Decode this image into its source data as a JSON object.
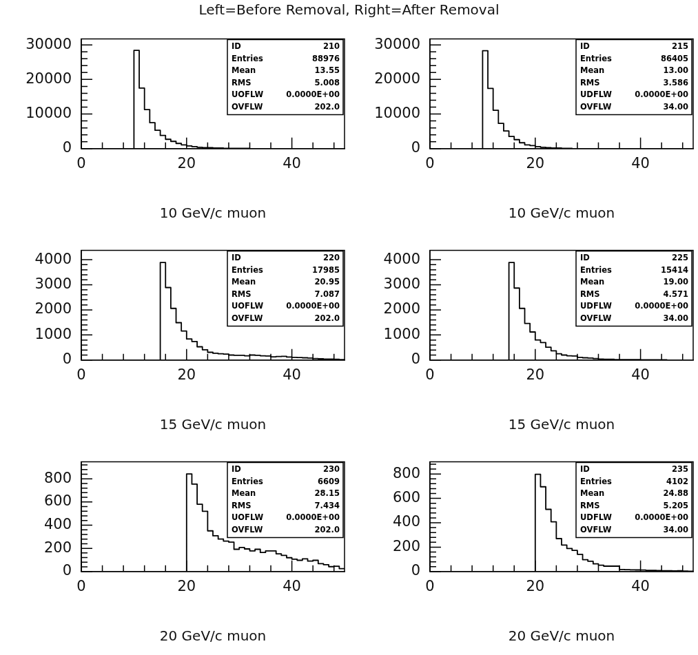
{
  "chart_data": [
    {
      "type": "histogram",
      "title": "Left=Before Removal, Right=After Removal",
      "xlabel": "10 GeV/c muon",
      "color": "#000000",
      "bins": [
        0,
        1,
        2,
        3,
        4,
        5,
        6,
        7,
        8,
        9,
        10,
        11,
        12,
        13,
        14,
        15,
        16,
        17,
        18,
        19,
        20,
        21,
        22,
        23,
        24,
        25,
        26,
        27,
        28,
        29,
        30,
        31,
        32,
        33,
        34,
        35,
        36,
        37,
        38,
        39,
        40,
        41,
        42,
        43,
        44,
        45,
        46,
        47,
        48,
        49,
        50
      ],
      "values": [
        0,
        0,
        0,
        0,
        0,
        0,
        0,
        0,
        0,
        0,
        28400,
        17500,
        11300,
        7500,
        5300,
        3800,
        2700,
        2100,
        1500,
        1100,
        800,
        600,
        400,
        300,
        300,
        200,
        200,
        100,
        100,
        100,
        100,
        100,
        0,
        0,
        0,
        0,
        0,
        0,
        0,
        0,
        0,
        0,
        0,
        0,
        0,
        0,
        0,
        0,
        0,
        0
      ],
      "xlim": [
        0,
        50
      ],
      "xticks": [
        0,
        {
          "value": 4,
          "label": null
        },
        {
          "value": 8,
          "label": null
        },
        {
          "value": 12,
          "label": null
        },
        {
          "value": 16,
          "label": null
        },
        20,
        {
          "value": 24,
          "label": null
        },
        {
          "value": 28,
          "label": null
        },
        {
          "value": 32,
          "label": null
        },
        {
          "value": 36,
          "label": null
        },
        40,
        {
          "value": 44,
          "label": null
        },
        {
          "value": 48,
          "label": null
        }
      ],
      "ylim": [
        0,
        31700
      ],
      "yticks": [
        0,
        {
          "value": 2000,
          "label": null
        },
        {
          "value": 4000,
          "label": null
        },
        {
          "value": 6000,
          "label": null
        },
        {
          "value": 8000,
          "label": null
        },
        10000,
        {
          "value": 12000,
          "label": null
        },
        {
          "value": 14000,
          "label": null
        },
        {
          "value": 16000,
          "label": null
        },
        {
          "value": 18000,
          "label": null
        },
        20000,
        {
          "value": 22000,
          "label": null
        },
        {
          "value": 24000,
          "label": null
        },
        {
          "value": 26000,
          "label": null
        },
        {
          "value": 28000,
          "label": null
        },
        30000
      ],
      "annotations": [
        "ID",
        "210",
        "Entries",
        "88976",
        "Mean",
        "13.55",
        "RMS",
        "5.008",
        "UOFLW",
        "0.0000E+00",
        "OVFLW",
        "202.0"
      ]
    },
    {
      "type": "histogram",
      "xlabel": "10 GeV/c muon",
      "color": "#000000",
      "bins": [
        0,
        1,
        2,
        3,
        4,
        5,
        6,
        7,
        8,
        9,
        10,
        11,
        12,
        13,
        14,
        15,
        16,
        17,
        18,
        19,
        20,
        21,
        22,
        23,
        24,
        25,
        26,
        27,
        28,
        29,
        30,
        31,
        32,
        33,
        34,
        35,
        36,
        37,
        38,
        39,
        40,
        41,
        42,
        43,
        44,
        45,
        46,
        47,
        48,
        49,
        50
      ],
      "values": [
        0,
        0,
        0,
        0,
        0,
        0,
        0,
        0,
        0,
        0,
        28300,
        17400,
        11100,
        7300,
        5100,
        3500,
        2600,
        1700,
        1100,
        900,
        600,
        400,
        300,
        200,
        200,
        100,
        100,
        0,
        0,
        0,
        0,
        0,
        0,
        0,
        0,
        0,
        0,
        0,
        0,
        0,
        0,
        0,
        0,
        0,
        0,
        0,
        0,
        0,
        0,
        0
      ],
      "xlim": [
        0,
        50
      ],
      "xticks": [
        0,
        {
          "value": 4,
          "label": null
        },
        {
          "value": 8,
          "label": null
        },
        {
          "value": 12,
          "label": null
        },
        {
          "value": 16,
          "label": null
        },
        20,
        {
          "value": 24,
          "label": null
        },
        {
          "value": 28,
          "label": null
        },
        {
          "value": 32,
          "label": null
        },
        {
          "value": 36,
          "label": null
        },
        40,
        {
          "value": 44,
          "label": null
        },
        {
          "value": 48,
          "label": null
        }
      ],
      "ylim": [
        0,
        31700
      ],
      "yticks": [
        0,
        {
          "value": 2000,
          "label": null
        },
        {
          "value": 4000,
          "label": null
        },
        {
          "value": 6000,
          "label": null
        },
        {
          "value": 8000,
          "label": null
        },
        10000,
        {
          "value": 12000,
          "label": null
        },
        {
          "value": 14000,
          "label": null
        },
        {
          "value": 16000,
          "label": null
        },
        {
          "value": 18000,
          "label": null
        },
        20000,
        {
          "value": 22000,
          "label": null
        },
        {
          "value": 24000,
          "label": null
        },
        {
          "value": 26000,
          "label": null
        },
        {
          "value": 28000,
          "label": null
        },
        30000
      ],
      "annotations": [
        "ID",
        "215",
        "Entries",
        "86405",
        "Mean",
        "13.00",
        "RMS",
        "3.586",
        "UDFLW",
        "0.0000E+00",
        "OVFLW",
        "34.00"
      ]
    },
    {
      "type": "histogram",
      "xlabel": "15 GeV/c muon",
      "color": "#000000",
      "bins": [
        0,
        1,
        2,
        3,
        4,
        5,
        6,
        7,
        8,
        9,
        10,
        11,
        12,
        13,
        14,
        15,
        16,
        17,
        18,
        19,
        20,
        21,
        22,
        23,
        24,
        25,
        26,
        27,
        28,
        29,
        30,
        31,
        32,
        33,
        34,
        35,
        36,
        37,
        38,
        39,
        40,
        41,
        42,
        43,
        44,
        45,
        46,
        47,
        48,
        49,
        50
      ],
      "values": [
        0,
        0,
        0,
        0,
        0,
        0,
        0,
        0,
        0,
        0,
        0,
        0,
        0,
        0,
        0,
        3890,
        2890,
        2060,
        1490,
        1160,
        840,
        740,
        530,
        410,
        310,
        270,
        250,
        240,
        200,
        190,
        190,
        170,
        200,
        190,
        170,
        160,
        130,
        140,
        150,
        120,
        110,
        100,
        90,
        80,
        60,
        50,
        40,
        40,
        30,
        20
      ],
      "xlim": [
        0,
        50
      ],
      "xticks": [
        0,
        {
          "value": 4,
          "label": null
        },
        {
          "value": 8,
          "label": null
        },
        {
          "value": 12,
          "label": null
        },
        {
          "value": 16,
          "label": null
        },
        20,
        {
          "value": 24,
          "label": null
        },
        {
          "value": 28,
          "label": null
        },
        {
          "value": 32,
          "label": null
        },
        {
          "value": 36,
          "label": null
        },
        40,
        {
          "value": 44,
          "label": null
        },
        {
          "value": 48,
          "label": null
        }
      ],
      "ylim": [
        0,
        4370
      ],
      "yticks": [
        0,
        {
          "value": 200,
          "label": null
        },
        {
          "value": 400,
          "label": null
        },
        {
          "value": 600,
          "label": null
        },
        {
          "value": 800,
          "label": null
        },
        1000,
        {
          "value": 1200,
          "label": null
        },
        {
          "value": 1400,
          "label": null
        },
        {
          "value": 1600,
          "label": null
        },
        {
          "value": 1800,
          "label": null
        },
        2000,
        {
          "value": 2200,
          "label": null
        },
        {
          "value": 2400,
          "label": null
        },
        {
          "value": 2600,
          "label": null
        },
        {
          "value": 2800,
          "label": null
        },
        3000,
        {
          "value": 3200,
          "label": null
        },
        {
          "value": 3400,
          "label": null
        },
        {
          "value": 3600,
          "label": null
        },
        {
          "value": 3800,
          "label": null
        },
        4000
      ],
      "annotations": [
        "ID",
        "220",
        "Entries",
        "17985",
        "Mean",
        "20.95",
        "RMS",
        "7.087",
        "UOFLW",
        "0.0000E+00",
        "OVFLW",
        "202.0"
      ]
    },
    {
      "type": "histogram",
      "xlabel": "15 GeV/c muon",
      "color": "#000000",
      "bins": [
        0,
        1,
        2,
        3,
        4,
        5,
        6,
        7,
        8,
        9,
        10,
        11,
        12,
        13,
        14,
        15,
        16,
        17,
        18,
        19,
        20,
        21,
        22,
        23,
        24,
        25,
        26,
        27,
        28,
        29,
        30,
        31,
        32,
        33,
        34,
        35,
        36,
        37,
        38,
        39,
        40,
        41,
        42,
        43,
        44,
        45,
        46,
        47,
        48,
        49,
        50
      ],
      "values": [
        0,
        0,
        0,
        0,
        0,
        0,
        0,
        0,
        0,
        0,
        0,
        0,
        0,
        0,
        0,
        3890,
        2870,
        2060,
        1460,
        1120,
        800,
        700,
        510,
        370,
        250,
        200,
        170,
        160,
        110,
        90,
        80,
        60,
        40,
        30,
        30,
        20,
        20,
        20,
        20,
        20,
        10,
        10,
        10,
        10,
        10,
        0,
        0,
        0,
        0,
        0
      ],
      "xlim": [
        0,
        50
      ],
      "xticks": [
        0,
        {
          "value": 4,
          "label": null
        },
        {
          "value": 8,
          "label": null
        },
        {
          "value": 12,
          "label": null
        },
        {
          "value": 16,
          "label": null
        },
        20,
        {
          "value": 24,
          "label": null
        },
        {
          "value": 28,
          "label": null
        },
        {
          "value": 32,
          "label": null
        },
        {
          "value": 36,
          "label": null
        },
        40,
        {
          "value": 44,
          "label": null
        },
        {
          "value": 48,
          "label": null
        }
      ],
      "ylim": [
        0,
        4370
      ],
      "yticks": [
        0,
        {
          "value": 200,
          "label": null
        },
        {
          "value": 400,
          "label": null
        },
        {
          "value": 600,
          "label": null
        },
        {
          "value": 800,
          "label": null
        },
        1000,
        {
          "value": 1200,
          "label": null
        },
        {
          "value": 1400,
          "label": null
        },
        {
          "value": 1600,
          "label": null
        },
        {
          "value": 1800,
          "label": null
        },
        2000,
        {
          "value": 2200,
          "label": null
        },
        {
          "value": 2400,
          "label": null
        },
        {
          "value": 2600,
          "label": null
        },
        {
          "value": 2800,
          "label": null
        },
        3000,
        {
          "value": 3200,
          "label": null
        },
        {
          "value": 3400,
          "label": null
        },
        {
          "value": 3600,
          "label": null
        },
        {
          "value": 3800,
          "label": null
        },
        4000
      ],
      "annotations": [
        "ID",
        "225",
        "Entries",
        "15414",
        "Mean",
        "19.00",
        "RMS",
        "4.571",
        "UDFLW",
        "0.0000E+00",
        "OVFLW",
        "34.00"
      ]
    },
    {
      "type": "histogram",
      "xlabel": "20 GeV/c muon",
      "color": "#000000",
      "bins": [
        0,
        1,
        2,
        3,
        4,
        5,
        6,
        7,
        8,
        9,
        10,
        11,
        12,
        13,
        14,
        15,
        16,
        17,
        18,
        19,
        20,
        21,
        22,
        23,
        24,
        25,
        26,
        27,
        28,
        29,
        30,
        31,
        32,
        33,
        34,
        35,
        36,
        37,
        38,
        39,
        40,
        41,
        42,
        43,
        44,
        45,
        46,
        47,
        48,
        49,
        50
      ],
      "values": [
        0,
        0,
        0,
        0,
        0,
        0,
        0,
        0,
        0,
        0,
        0,
        0,
        0,
        0,
        0,
        0,
        0,
        0,
        0,
        0,
        842,
        754,
        581,
        520,
        351,
        308,
        280,
        263,
        254,
        192,
        208,
        195,
        178,
        192,
        164,
        178,
        178,
        153,
        139,
        119,
        107,
        97,
        110,
        90,
        97,
        68,
        59,
        42,
        46,
        25
      ],
      "xlim": [
        0,
        50
      ],
      "xticks": [
        0,
        {
          "value": 4,
          "label": null
        },
        {
          "value": 8,
          "label": null
        },
        {
          "value": 12,
          "label": null
        },
        {
          "value": 16,
          "label": null
        },
        20,
        {
          "value": 24,
          "label": null
        },
        {
          "value": 28,
          "label": null
        },
        {
          "value": 32,
          "label": null
        },
        {
          "value": 36,
          "label": null
        },
        40,
        {
          "value": 44,
          "label": null
        },
        {
          "value": 48,
          "label": null
        }
      ],
      "ylim": [
        0,
        946
      ],
      "yticks": [
        0,
        {
          "value": 40,
          "label": null
        },
        {
          "value": 80,
          "label": null
        },
        {
          "value": 120,
          "label": null
        },
        {
          "value": 160,
          "label": null
        },
        200,
        {
          "value": 240,
          "label": null
        },
        {
          "value": 280,
          "label": null
        },
        {
          "value": 320,
          "label": null
        },
        {
          "value": 360,
          "label": null
        },
        400,
        {
          "value": 440,
          "label": null
        },
        {
          "value": 480,
          "label": null
        },
        {
          "value": 520,
          "label": null
        },
        {
          "value": 560,
          "label": null
        },
        600,
        {
          "value": 640,
          "label": null
        },
        {
          "value": 680,
          "label": null
        },
        {
          "value": 720,
          "label": null
        },
        {
          "value": 760,
          "label": null
        },
        800,
        {
          "value": 840,
          "label": null
        },
        {
          "value": 880,
          "label": null
        },
        {
          "value": 920,
          "label": null
        }
      ],
      "annotations": [
        "ID",
        "230",
        "Entries",
        "6609",
        "Mean",
        "28.15",
        "RMS",
        "7.434",
        "UOFLW",
        "0.0000E+00",
        "OVFLW",
        "202.0"
      ]
    },
    {
      "type": "histogram",
      "xlabel": "20 GeV/c muon",
      "color": "#000000",
      "bins": [
        0,
        1,
        2,
        3,
        4,
        5,
        6,
        7,
        8,
        9,
        10,
        11,
        12,
        13,
        14,
        15,
        16,
        17,
        18,
        19,
        20,
        21,
        22,
        23,
        24,
        25,
        26,
        27,
        28,
        29,
        30,
        31,
        32,
        33,
        34,
        35,
        36,
        37,
        38,
        39,
        40,
        41,
        42,
        43,
        44,
        45,
        46,
        47,
        48,
        49,
        50
      ],
      "values": [
        0,
        0,
        0,
        0,
        0,
        0,
        0,
        0,
        0,
        0,
        0,
        0,
        0,
        0,
        0,
        0,
        0,
        0,
        0,
        0,
        797,
        695,
        510,
        408,
        270,
        217,
        189,
        173,
        141,
        97,
        84,
        63,
        52,
        44,
        44,
        44,
        16,
        15,
        14,
        13,
        12,
        10,
        9,
        8,
        7,
        6,
        5,
        6,
        3,
        2
      ],
      "xlim": [
        0,
        50
      ],
      "xticks": [
        0,
        {
          "value": 4,
          "label": null
        },
        {
          "value": 8,
          "label": null
        },
        {
          "value": 12,
          "label": null
        },
        {
          "value": 16,
          "label": null
        },
        20,
        {
          "value": 24,
          "label": null
        },
        {
          "value": 28,
          "label": null
        },
        {
          "value": 32,
          "label": null
        },
        {
          "value": 36,
          "label": null
        },
        40,
        {
          "value": 44,
          "label": null
        },
        {
          "value": 48,
          "label": null
        }
      ],
      "ylim": [
        0,
        899
      ],
      "yticks": [
        0,
        {
          "value": 40,
          "label": null
        },
        {
          "value": 80,
          "label": null
        },
        {
          "value": 120,
          "label": null
        },
        {
          "value": 160,
          "label": null
        },
        200,
        {
          "value": 240,
          "label": null
        },
        {
          "value": 280,
          "label": null
        },
        {
          "value": 320,
          "label": null
        },
        {
          "value": 360,
          "label": null
        },
        400,
        {
          "value": 440,
          "label": null
        },
        {
          "value": 480,
          "label": null
        },
        {
          "value": 520,
          "label": null
        },
        {
          "value": 560,
          "label": null
        },
        600,
        {
          "value": 640,
          "label": null
        },
        {
          "value": 680,
          "label": null
        },
        {
          "value": 720,
          "label": null
        },
        {
          "value": 760,
          "label": null
        },
        800,
        {
          "value": 840,
          "label": null
        },
        {
          "value": 880,
          "label": null
        }
      ],
      "annotations": [
        "ID",
        "235",
        "Entries",
        "4102",
        "Mean",
        "24.88",
        "RMS",
        "5.205",
        "UDFLW",
        "0.0000E+00",
        "OVFLW",
        "34.00"
      ]
    }
  ]
}
